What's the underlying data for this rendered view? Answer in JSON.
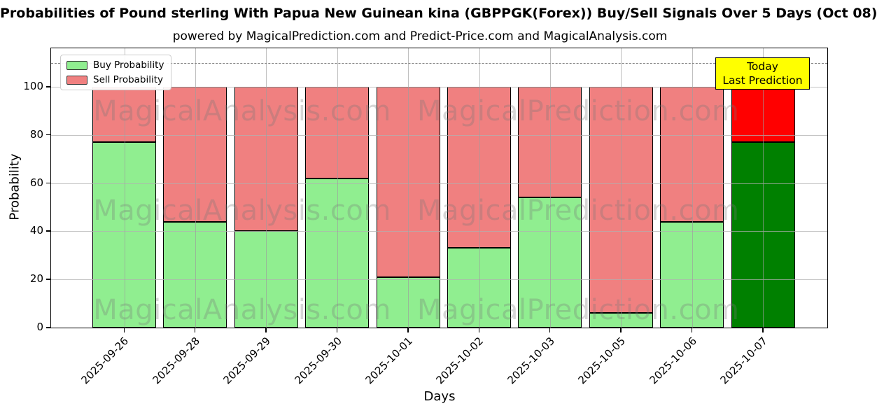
{
  "title": "Probabilities of Pound sterling With Papua New Guinean kina (GBPPGK(Forex)) Buy/Sell Signals Over 5 Days (Oct 08)",
  "subtitle": "powered by MagicalPrediction.com and Predict-Price.com and MagicalAnalysis.com",
  "legend": [
    {
      "label": "Buy Probability",
      "color": "#90ee90"
    },
    {
      "label": "Sell Probability",
      "color": "#f08080"
    }
  ],
  "annotation": {
    "line1": "Today",
    "line2": "Last Prediction",
    "bg_color": "#ffff00"
  },
  "watermarks": {
    "left": "MagicalAnalysis.com",
    "right": "MagicalPrediction.com"
  },
  "colors": {
    "buy": "#90ee90",
    "sell": "#f08080",
    "buy_today": "#008000",
    "sell_today": "#ff0000",
    "grid": "#b0b0b0",
    "dashed_line": "#7f7f7f",
    "bar_edge": "#000000"
  },
  "chart_data": {
    "type": "bar",
    "stacked": true,
    "title": "Probabilities of Pound sterling With Papua New Guinean kina (GBPPGK(Forex)) Buy/Sell Signals Over 5 Days (Oct 08)",
    "xlabel": "Days",
    "ylabel": "Probability",
    "categories": [
      "2025-09-26",
      "2025-09-28",
      "2025-09-29",
      "2025-09-30",
      "2025-10-01",
      "2025-10-02",
      "2025-10-03",
      "2025-10-05",
      "2025-10-06",
      "2025-10-07"
    ],
    "series": [
      {
        "name": "Buy Probability",
        "color": "#90ee90",
        "values": [
          77,
          44,
          40,
          62,
          21,
          33,
          54,
          6,
          44,
          77
        ]
      },
      {
        "name": "Sell Probability",
        "color": "#f08080",
        "values": [
          23,
          56,
          60,
          38,
          79,
          67,
          46,
          94,
          56,
          23
        ]
      }
    ],
    "bar_total": 100,
    "today_index": 9,
    "today_colors": {
      "buy": "#008000",
      "sell": "#ff0000"
    },
    "ylim": [
      0,
      116
    ],
    "yticks": [
      0,
      20,
      40,
      60,
      80,
      100
    ],
    "dashed_line_y": 110,
    "grid": true,
    "legend_position": "upper left"
  }
}
